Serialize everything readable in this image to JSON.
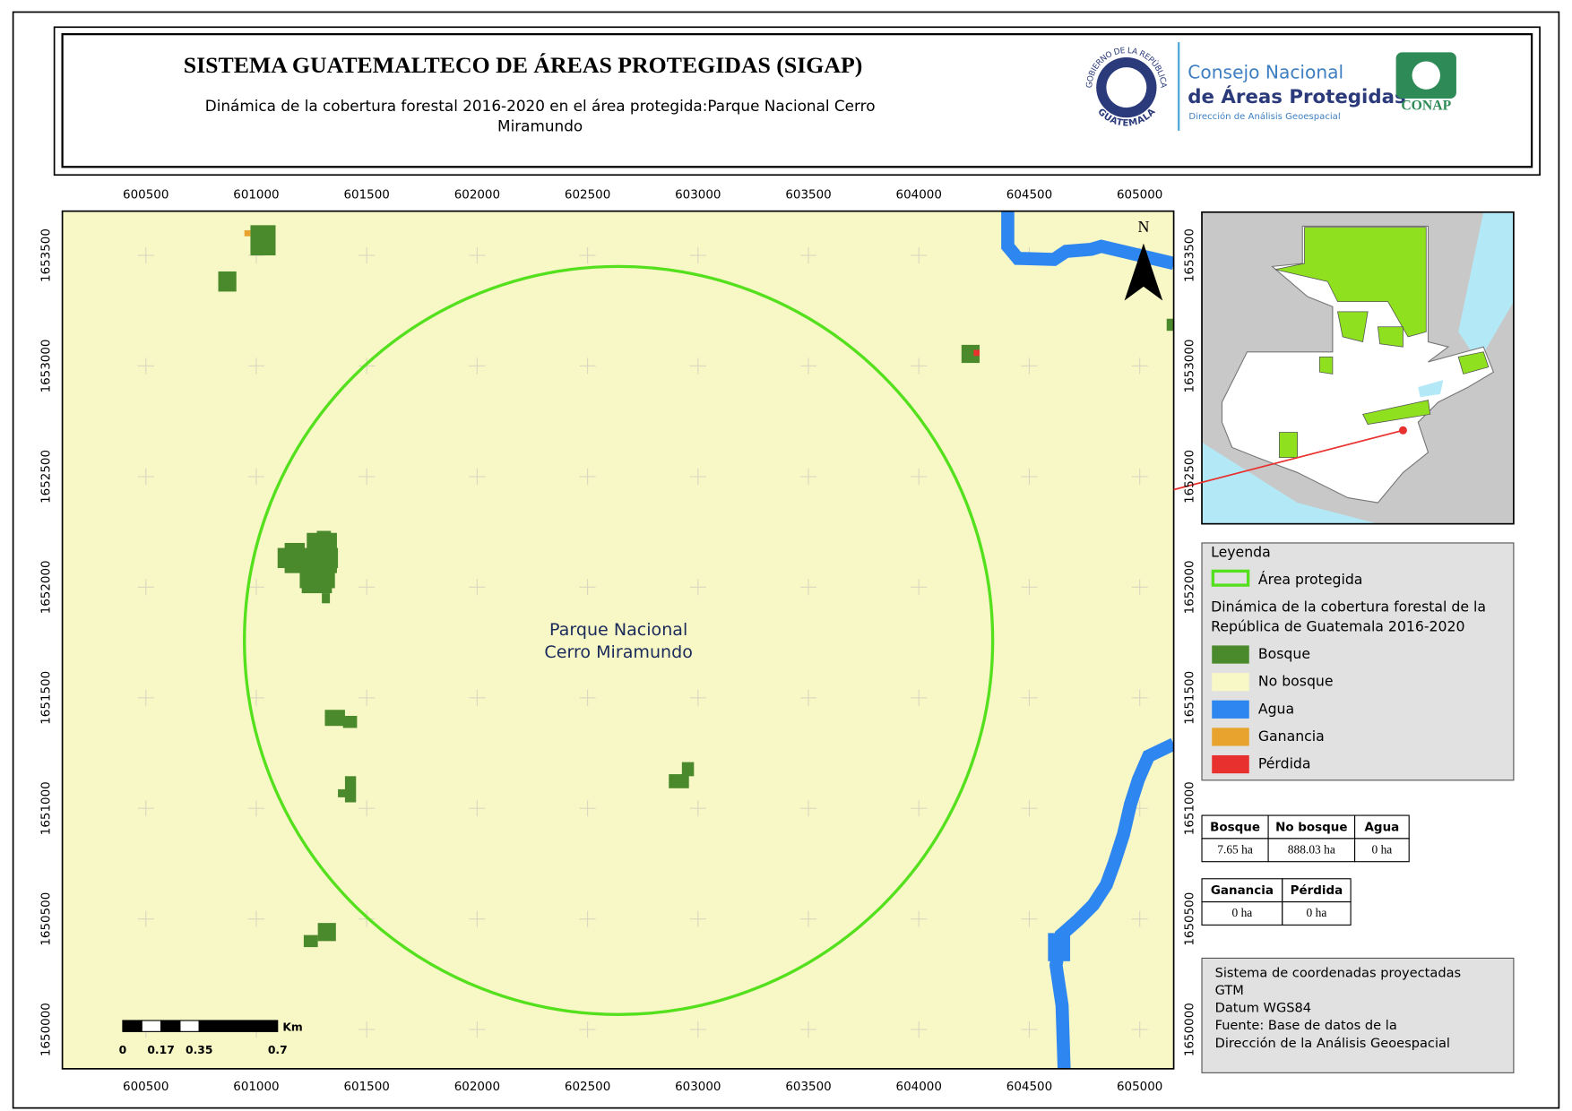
{
  "header": {
    "title": "SISTEMA GUATEMALTECO DE ÁREAS PROTEGIDAS  (SIGAP)",
    "subtitle_lines": [
      "Dinámica de la cobertura forestal 2016-2020 en el área protegida:Parque Nacional Cerro",
      "Miramundo"
    ]
  },
  "logos": {
    "seal_top": "GOBIERNO DE LA REPÚBLICA",
    "seal_bottom": "GUATEMALA",
    "conap_line1": "Consejo Nacional",
    "conap_line2": "de Áreas Protegidas",
    "conap_line3": "Dirección de Análisis Geoespacial",
    "conap_badge": "CONAP"
  },
  "map": {
    "xticks": [
      600500,
      601000,
      601500,
      602000,
      602500,
      603000,
      603500,
      604000,
      604500,
      605000
    ],
    "yticks": [
      1650000,
      1650500,
      1651000,
      1651500,
      1652000,
      1652500,
      1653000,
      1653500
    ],
    "area_label": [
      "Parque Nacional",
      "Cerro Miramundo"
    ],
    "north": "N"
  },
  "legend": {
    "title": "Leyenda",
    "protected_area": {
      "label": "Área protegida",
      "color": "#55e01e"
    },
    "section_title": [
      "Dinámica de la cobertura forestal de la",
      "República de Guatemala 2016-2020"
    ],
    "items": [
      {
        "label": "Bosque",
        "color": "#4a8a2c"
      },
      {
        "label": "No bosque",
        "color": "#f8f7c6"
      },
      {
        "label": "Agua",
        "color": "#2e86f0"
      },
      {
        "label": "Ganancia",
        "color": "#e8a32e"
      },
      {
        "label": "Pérdida",
        "color": "#e8302e"
      }
    ]
  },
  "tables": [
    {
      "headers": [
        "Bosque",
        "No bosque",
        "Agua"
      ],
      "rows": [
        [
          "7.65 ha",
          "888.03 ha",
          "0 ha"
        ]
      ]
    },
    {
      "headers": [
        "Ganancia",
        "Pérdida"
      ],
      "rows": [
        [
          "0 ha",
          "0 ha"
        ]
      ]
    }
  ],
  "scale_bar": {
    "unit": "Km",
    "labels": [
      "0",
      "0.17",
      "0.35",
      "0.7"
    ]
  },
  "info": [
    "Sistema de coordenadas proyectadas",
    "GTM",
    "Datum WGS84",
    "Fuente: Base de datos de la",
    "Dirección de la Análisis Geoespacial"
  ]
}
